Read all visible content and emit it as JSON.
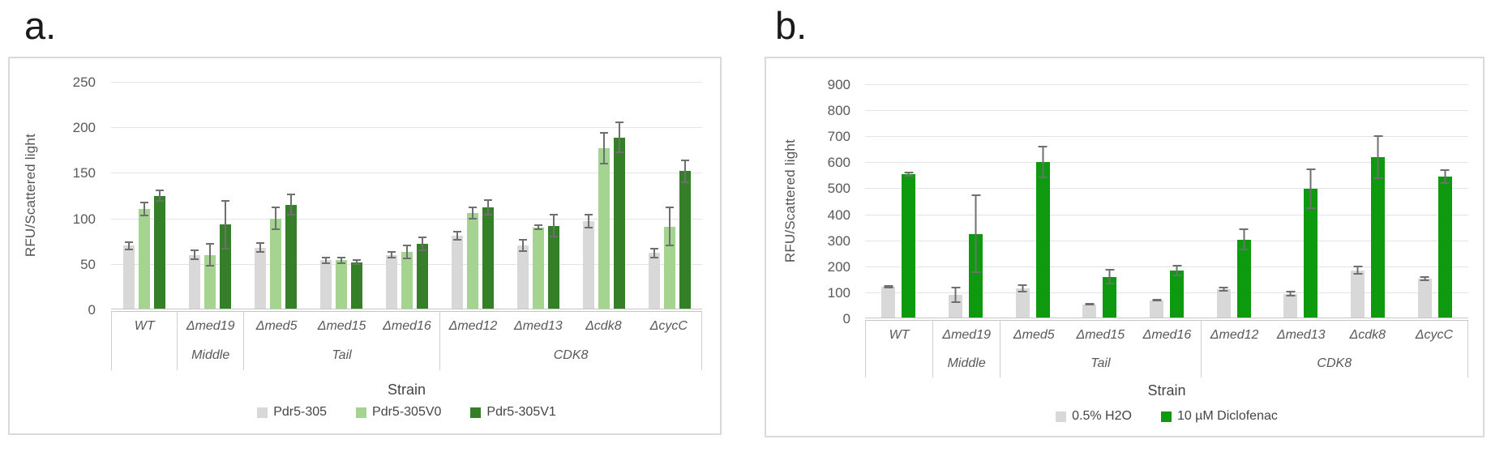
{
  "page": {
    "background": "#ffffff"
  },
  "figures": [
    {
      "label": "a.",
      "chart_data": {
        "type": "bar",
        "title": "",
        "ylabel": "RFU/Scattered light",
        "xlabel": "Strain",
        "ylim": [
          0,
          250
        ],
        "yticks": [
          0,
          50,
          100,
          150,
          200,
          250
        ],
        "grid": true,
        "legend_position": "bottom",
        "categories": [
          "WT",
          "Δmed19",
          "Δmed5",
          "Δmed15",
          "Δmed16",
          "Δmed12",
          "Δmed13",
          "Δcdk8",
          "ΔcycC"
        ],
        "category_groups": [
          {
            "label": "",
            "span": 1
          },
          {
            "label": "Middle",
            "span": 1
          },
          {
            "label": "Tail",
            "span": 3
          },
          {
            "label": "CDK8",
            "span": 4
          }
        ],
        "series": [
          {
            "name": "Pdr5-305",
            "color": "#d8d8d8",
            "values": [
              70,
              60,
              68,
              54,
              60,
              81,
              70,
              97,
              62
            ],
            "errors": [
              5,
              6,
              6,
              4,
              4,
              5,
              7,
              8,
              6
            ]
          },
          {
            "name": "Pdr5-305V0",
            "color": "#a4d48f",
            "values": [
              110,
              60,
              100,
              54,
              63,
              106,
              90,
              177,
              91
            ],
            "errors": [
              8,
              13,
              13,
              4,
              8,
              7,
              3,
              18,
              22
            ]
          },
          {
            "name": "Pdr5-305V1",
            "color": "#347f28",
            "values": [
              125,
              93,
              115,
              52,
              72,
              112,
              92,
              189,
              152
            ],
            "errors": [
              7,
              27,
              12,
              3,
              8,
              9,
              13,
              17,
              13
            ]
          }
        ]
      }
    },
    {
      "label": "b.",
      "chart_data": {
        "type": "bar",
        "title": "",
        "ylabel": "RFU/Scattered light",
        "xlabel": "Strain",
        "ylim": [
          0,
          900
        ],
        "yticks": [
          0,
          100,
          200,
          300,
          400,
          500,
          600,
          700,
          800,
          900
        ],
        "grid": true,
        "legend_position": "bottom",
        "categories": [
          "WT",
          "Δmed19",
          "Δmed5",
          "Δmed15",
          "Δmed16",
          "Δmed12",
          "Δmed13",
          "Δcdk8",
          "ΔcycC"
        ],
        "category_groups": [
          {
            "label": "",
            "span": 1
          },
          {
            "label": "Middle",
            "span": 1
          },
          {
            "label": "Tail",
            "span": 3
          },
          {
            "label": "CDK8",
            "span": 4
          }
        ],
        "series": [
          {
            "name": "0.5% H2O",
            "color": "#d8d8d8",
            "values": [
              122,
              90,
              115,
              54,
              70,
              112,
              95,
              185,
              152
            ],
            "errors": [
              6,
              30,
              15,
              5,
              6,
              8,
              10,
              18,
              10
            ]
          },
          {
            "name": "10 µM Diclofenac",
            "color": "#0e9a0e",
            "values": [
              555,
              325,
              600,
              160,
              185,
              303,
              497,
              620,
              545
            ],
            "errors": [
              10,
              150,
              62,
              30,
              22,
              42,
              78,
              85,
              28
            ]
          }
        ]
      }
    }
  ]
}
